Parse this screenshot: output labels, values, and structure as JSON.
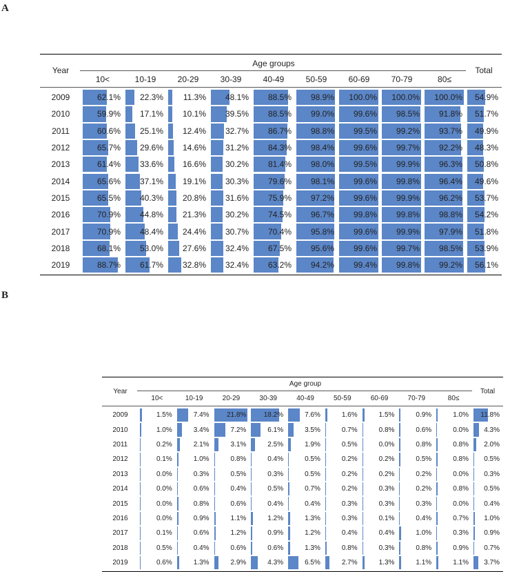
{
  "chart_data": [
    {
      "type": "table",
      "panel_label": "A",
      "year_header": "Year",
      "group_header": "Age groups",
      "total_header": "Total",
      "columns": [
        "10<",
        "10-19",
        "20-29",
        "30-39",
        "40-49",
        "50-59",
        "60-69",
        "70-79",
        "80≤"
      ],
      "years": [
        "2009",
        "2010",
        "2011",
        "2012",
        "2013",
        "2014",
        "2015",
        "2016",
        "2017",
        "2018",
        "2019"
      ],
      "values": [
        [
          "62.1%",
          "22.3%",
          "11.3%",
          "48.1%",
          "88.5%",
          "98.9%",
          "100.0%",
          "100.0%",
          "100.0%"
        ],
        [
          "59.9%",
          "17.1%",
          "10.1%",
          "39.5%",
          "88.5%",
          "99.0%",
          "99.6%",
          "98.5%",
          "91.8%"
        ],
        [
          "60.6%",
          "25.1%",
          "12.4%",
          "32.7%",
          "86.7%",
          "98.8%",
          "99.5%",
          "99.2%",
          "93.7%"
        ],
        [
          "65.7%",
          "29.6%",
          "14.6%",
          "31.2%",
          "84.3%",
          "98.4%",
          "99.6%",
          "99.7%",
          "92.2%"
        ],
        [
          "61.4%",
          "33.6%",
          "16.6%",
          "30.2%",
          "81.4%",
          "98.0%",
          "99.5%",
          "99.9%",
          "96.3%"
        ],
        [
          "65.6%",
          "37.1%",
          "19.1%",
          "30.3%",
          "79.6%",
          "98.1%",
          "99.6%",
          "99.8%",
          "96.4%"
        ],
        [
          "65.5%",
          "40.3%",
          "20.8%",
          "31.6%",
          "75.9%",
          "97.2%",
          "99.6%",
          "99.9%",
          "96.2%"
        ],
        [
          "70.9%",
          "44.8%",
          "21.3%",
          "30.2%",
          "74.5%",
          "96.7%",
          "99.8%",
          "99.8%",
          "98.8%"
        ],
        [
          "70.9%",
          "48.4%",
          "24.4%",
          "30.7%",
          "70.4%",
          "95.8%",
          "99.6%",
          "99.9%",
          "97.9%"
        ],
        [
          "68.1%",
          "53.0%",
          "27.6%",
          "32.4%",
          "67.5%",
          "95.6%",
          "99.6%",
          "99.7%",
          "98.5%"
        ],
        [
          "88.7%",
          "61.7%",
          "32.8%",
          "32.4%",
          "63.2%",
          "94.2%",
          "99.4%",
          "99.8%",
          "99.2%"
        ]
      ],
      "totals": [
        "54.9%",
        "51.7%",
        "49.9%",
        "48.3%",
        "50.8%",
        "49.6%",
        "53.7%",
        "54.2%",
        "51.8%",
        "53.9%",
        "56.1%"
      ],
      "bar_color": "#5b86c7"
    },
    {
      "type": "table",
      "panel_label": "B",
      "year_header": "Year",
      "group_header": "Age group",
      "total_header": "Total",
      "columns": [
        "10<",
        "10-19",
        "20-29",
        "30-39",
        "40-49",
        "50-59",
        "60-69",
        "70-79",
        "80≤"
      ],
      "years": [
        "2009",
        "2010",
        "2011",
        "2012",
        "2013",
        "2014",
        "2015",
        "2016",
        "2017",
        "2018",
        "2019"
      ],
      "values": [
        [
          "1.5%",
          "7.4%",
          "21.8%",
          "18.2%",
          "7.6%",
          "1.6%",
          "1.5%",
          "0.9%",
          "1.0%"
        ],
        [
          "1.0%",
          "3.4%",
          "7.2%",
          "6.1%",
          "3.5%",
          "0.7%",
          "0.8%",
          "0.6%",
          "0.0%"
        ],
        [
          "0.2%",
          "2.1%",
          "3.1%",
          "2.5%",
          "1.9%",
          "0.5%",
          "0.0%",
          "0.8%",
          "0.8%"
        ],
        [
          "0.1%",
          "1.0%",
          "0.8%",
          "0.4%",
          "0.5%",
          "0.2%",
          "0.2%",
          "0.5%",
          "0.8%"
        ],
        [
          "0.0%",
          "0.3%",
          "0.5%",
          "0.3%",
          "0.5%",
          "0.2%",
          "0.2%",
          "0.2%",
          "0.0%"
        ],
        [
          "0.0%",
          "0.6%",
          "0.4%",
          "0.5%",
          "0.7%",
          "0.2%",
          "0.3%",
          "0.2%",
          "0.8%"
        ],
        [
          "0.0%",
          "0.8%",
          "0.6%",
          "0.4%",
          "0.4%",
          "0.3%",
          "0.3%",
          "0.3%",
          "0.0%"
        ],
        [
          "0.0%",
          "0.9%",
          "1.1%",
          "1.2%",
          "1.3%",
          "0.3%",
          "0.1%",
          "0.4%",
          "0.7%"
        ],
        [
          "0.1%",
          "0.6%",
          "1.2%",
          "0.9%",
          "1.2%",
          "0.4%",
          "0.4%",
          "1.0%",
          "0.3%"
        ],
        [
          "0.5%",
          "0.4%",
          "0.6%",
          "0.6%",
          "1.3%",
          "0.8%",
          "0.3%",
          "0.8%",
          "0.9%"
        ],
        [
          "0.6%",
          "1.3%",
          "2.9%",
          "4.3%",
          "6.5%",
          "2.7%",
          "1.3%",
          "1.1%",
          "1.1%"
        ]
      ],
      "totals": [
        "11.8%",
        "4.3%",
        "2.0%",
        "0.5%",
        "0.3%",
        "0.5%",
        "0.4%",
        "1.0%",
        "0.9%",
        "0.7%",
        "3.7%"
      ],
      "bar_color": "#5b86c7"
    }
  ]
}
